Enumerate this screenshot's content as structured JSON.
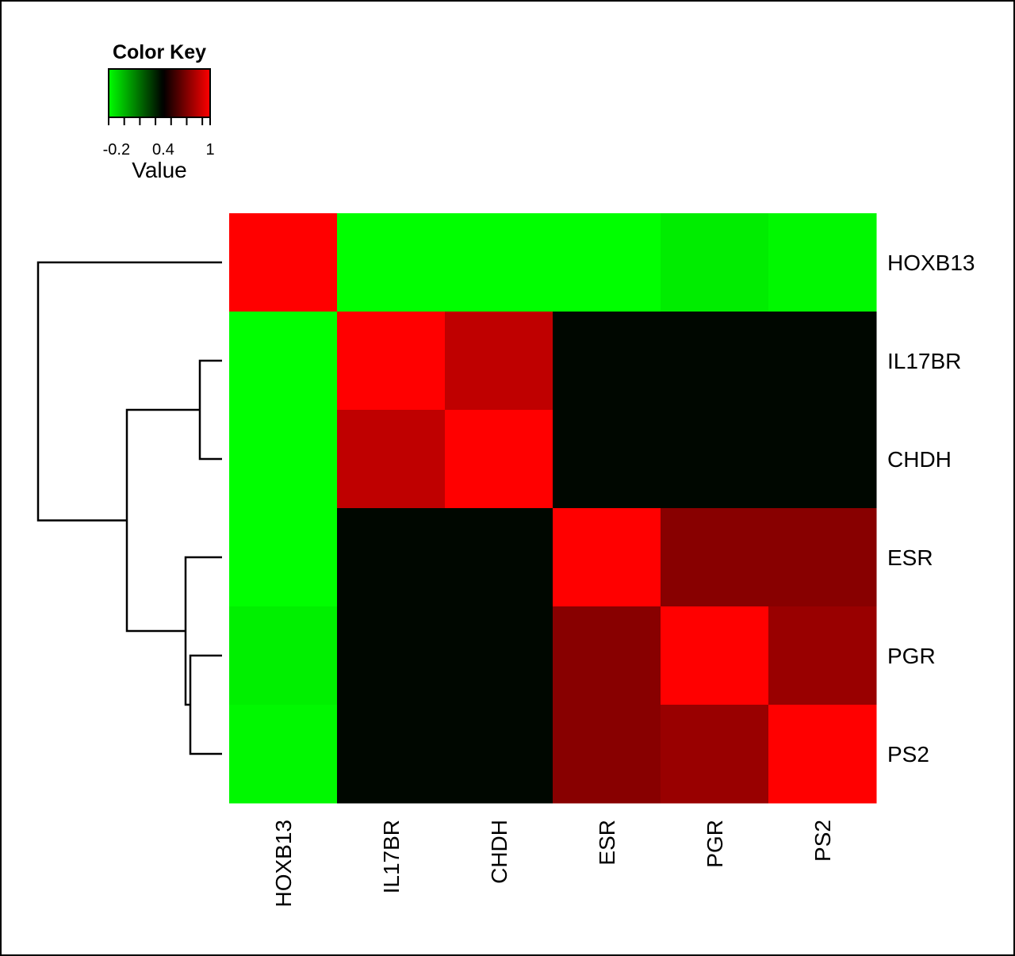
{
  "chart_data": {
    "type": "heatmap",
    "row_labels": [
      "HOXB13",
      "IL17BR",
      "CHDH",
      "ESR",
      "PGR",
      "PS2"
    ],
    "col_labels": [
      "HOXB13",
      "IL17BR",
      "CHDH",
      "ESR",
      "PGR",
      "PS2"
    ],
    "values": [
      [
        1.0,
        -0.3,
        -0.3,
        -0.3,
        -0.25,
        -0.28
      ],
      [
        -0.3,
        1.0,
        0.85,
        0.38,
        0.38,
        0.38
      ],
      [
        -0.3,
        0.85,
        1.0,
        0.38,
        0.38,
        0.38
      ],
      [
        -0.3,
        0.38,
        0.38,
        1.0,
        0.72,
        0.72
      ],
      [
        -0.26,
        0.38,
        0.38,
        0.72,
        1.0,
        0.76
      ],
      [
        -0.28,
        0.38,
        0.38,
        0.72,
        0.76,
        1.0
      ]
    ],
    "color_scale": {
      "min": -0.3,
      "mid": 0.4,
      "max": 1.0,
      "low_color": "#00ff00",
      "mid_color": "#000000",
      "high_color": "#ff0000"
    },
    "color_key": {
      "title": "Color Key",
      "xlabel": "Value",
      "tick_labels": [
        "-0.2",
        "0.4",
        "1"
      ],
      "tick_values": [
        -0.2,
        0.4,
        1.0
      ],
      "minor_ticks": [
        -0.3,
        -0.2,
        -0.1,
        0.0,
        0.1,
        0.2,
        0.3,
        0.4,
        0.5,
        0.6,
        0.7,
        0.8,
        0.9,
        1.0
      ]
    },
    "dendrogram": {
      "side": "left",
      "merges": [
        {
          "left": "IL17BR",
          "right": "CHDH"
        },
        {
          "left": "PGR",
          "right": "PS2"
        },
        {
          "left": "ESR",
          "right": "PGR+PS2"
        },
        {
          "left": "IL17BR+CHDH",
          "right": "ESR+PGR+PS2"
        },
        {
          "left": "HOXB13",
          "right": "rest"
        }
      ]
    }
  }
}
